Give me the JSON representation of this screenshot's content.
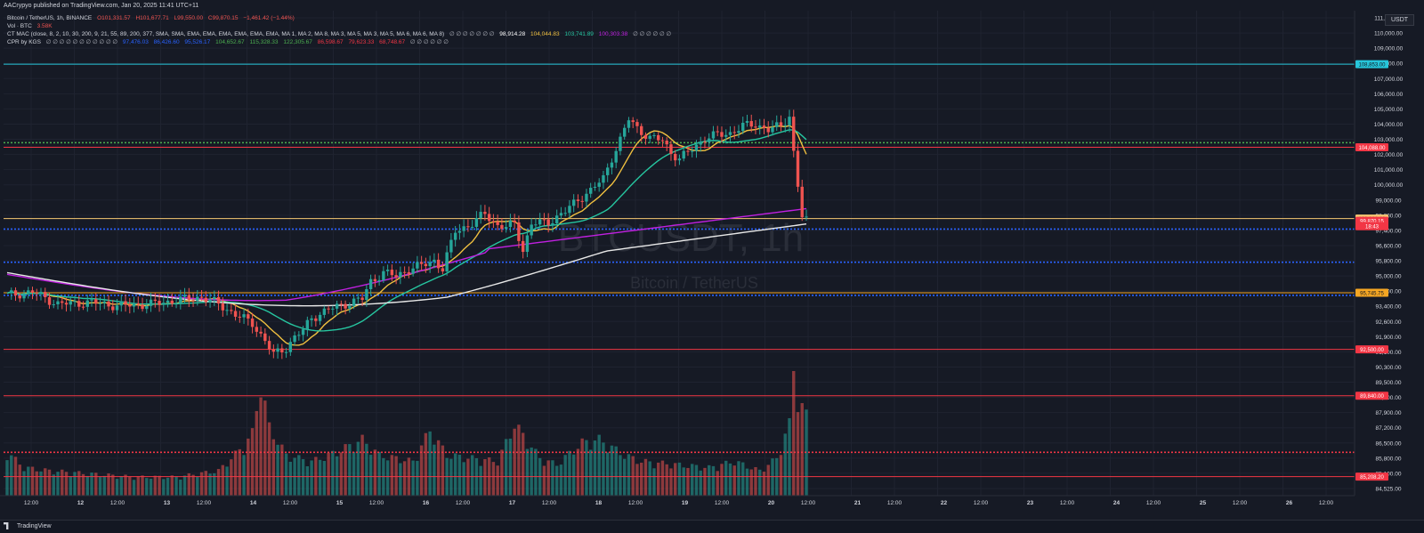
{
  "header": {
    "published_line": "AACrypyo published on TradingView.com, Jan 20, 2025 11:41 UTC+11",
    "symbol_line": {
      "title": "Bitcoin / TetherUS, 1h, BINANCE",
      "open": "O101,331.57",
      "high": "H101,677.71",
      "low": "L99,550.00",
      "close": "C99,870.15",
      "change": "−1,461.42 (−1.44%)"
    },
    "vol_line": {
      "label": "Vol · BTC",
      "value": "3.58K"
    },
    "ctmac_line": {
      "label": "CT MAC (close, 8, 2, 10, 30, 200, 9, 21, 55, 89, 200, 377, SMA, SMA, EMA, EMA, EMA, EMA, EMA, EMA, MA 1, MA 2, MA 8, MA 3, MA 5, MA 3, MA 5, MA 6, MA 6, MA 8)",
      "placeholders": "∅ ∅ ∅ ∅ ∅ ∅ ∅",
      "values": [
        "98,914.28",
        "104,044.83",
        "103,741.89",
        "100,303.38"
      ],
      "trailing": "∅ ∅ ∅ ∅ ∅ ∅"
    },
    "cpr_line": {
      "label": "CPR by KGS",
      "placeholders": "∅ ∅ ∅ ∅ ∅ ∅ ∅ ∅ ∅ ∅ ∅",
      "values": [
        "97,476.03",
        "86,426.60",
        "95,526.17",
        "104,652.67",
        "115,328.33",
        "122,305.67",
        "86,598.67",
        "79,623.33",
        "68,748.67"
      ],
      "trailing": "∅ ∅ ∅ ∅ ∅ ∅"
    }
  },
  "currency_label": "USDT",
  "watermark": {
    "symbol": "BTCUSDT, 1h",
    "description": "Bitcoin / TetherUS"
  },
  "price_axis_labels": [
    "111,000.00",
    "110,000.00",
    "109,000.00",
    "108,000.00",
    "107,000.00",
    "106,000.00",
    "105,000.00",
    "104,000.00",
    "103,000.00",
    "102,000.00",
    "101,000.00",
    "100,000.00",
    "99,000.00",
    "98,200.00",
    "97,400.00",
    "96,600.00",
    "95,800.00",
    "95,000.00",
    "94,200.00",
    "93,400.00",
    "92,600.00",
    "91,900.00",
    "91,100.00",
    "90,300.00",
    "89,500.00",
    "88,700.00",
    "87,900.00",
    "87,200.00",
    "86,500.00",
    "85,800.00",
    "85,100.00",
    "84,525.00"
  ],
  "time_axis_labels": [
    "12:00",
    "12",
    "12:00",
    "13",
    "12:00",
    "14",
    "12:00",
    "15",
    "12:00",
    "16",
    "12:00",
    "17",
    "12:00",
    "18",
    "12:00",
    "19",
    "12:00",
    "20",
    "12:00",
    "21",
    "12:00",
    "22",
    "12:00",
    "23",
    "12:00",
    "24",
    "12:00",
    "25",
    "12:00",
    "26",
    "12:00"
  ],
  "level_tags": [
    {
      "text": "108,853.00",
      "color": "#26c6da"
    },
    {
      "text": "104,088.00",
      "color": "#f23645"
    },
    {
      "text": "100,000.00",
      "color": "#f7c873"
    },
    {
      "text": "99,870.15",
      "color": "#f23645"
    },
    {
      "text": "18:43",
      "color": "#f23645"
    },
    {
      "text": "95,745.75",
      "color": "#f5a623"
    },
    {
      "text": "92,500.00",
      "color": "#f23645"
    },
    {
      "text": "89,840.00",
      "color": "#f23645"
    },
    {
      "text": "85,208.20",
      "color": "#f23645"
    }
  ],
  "footer": {
    "brand": "TradingView"
  },
  "colors": {
    "background": "#161a25",
    "up": "#26a69a",
    "down": "#ef5350",
    "ma_yellow": "#f0c040",
    "ma_teal": "#26c6a0",
    "ma_purple": "#c020e0",
    "ma_white": "#e8e8e8",
    "support_red": "#f23645",
    "support_blue": "#2962ff",
    "green_dotted": "#4caf50"
  },
  "chart_data": {
    "type": "candlestick",
    "symbol": "BTCUSDT",
    "interval": "1h",
    "exchange": "BINANCE",
    "y_range": [
      84525,
      111000
    ],
    "current_price": 99870.15,
    "horizontal_levels": [
      {
        "price": 108853,
        "color": "#26c6da",
        "style": "solid"
      },
      {
        "price": 104350,
        "color": "#4caf50",
        "style": "dotted"
      },
      {
        "price": 104088,
        "color": "#f23645",
        "style": "solid"
      },
      {
        "price": 100000,
        "color": "#f7c873",
        "style": "solid"
      },
      {
        "price": 99400,
        "color": "#2962ff",
        "style": "dotted"
      },
      {
        "price": 97500,
        "color": "#2962ff",
        "style": "dotted"
      },
      {
        "price": 95600,
        "color": "#2962ff",
        "style": "dotted"
      },
      {
        "price": 95745.75,
        "color": "#f5a623",
        "style": "solid"
      },
      {
        "price": 92500,
        "color": "#f23645",
        "style": "solid"
      },
      {
        "price": 89840,
        "color": "#f23645",
        "style": "solid"
      },
      {
        "price": 86600,
        "color": "#f23645",
        "style": "dotted"
      },
      {
        "price": 85208.2,
        "color": "#f23645",
        "style": "solid"
      }
    ],
    "price_path": [
      [
        0,
        95600
      ],
      [
        6,
        95800
      ],
      [
        12,
        95100
      ],
      [
        20,
        95200
      ],
      [
        26,
        95000
      ],
      [
        34,
        95100
      ],
      [
        40,
        95300
      ],
      [
        46,
        95500
      ],
      [
        50,
        95100
      ],
      [
        54,
        94500
      ],
      [
        58,
        94000
      ],
      [
        61,
        93000
      ],
      [
        63,
        92200
      ],
      [
        66,
        92600
      ],
      [
        68,
        93200
      ],
      [
        70,
        93600
      ],
      [
        72,
        94300
      ],
      [
        76,
        94800
      ],
      [
        80,
        95100
      ],
      [
        84,
        95400
      ],
      [
        86,
        96400
      ],
      [
        89,
        96900
      ],
      [
        92,
        96700
      ],
      [
        95,
        97100
      ],
      [
        98,
        97300
      ],
      [
        101,
        97600
      ],
      [
        103,
        97100
      ],
      [
        106,
        99300
      ],
      [
        110,
        99700
      ],
      [
        113,
        100300
      ],
      [
        116,
        99600
      ],
      [
        118,
        99500
      ],
      [
        120,
        99700
      ],
      [
        122,
        98200
      ],
      [
        124,
        99700
      ],
      [
        128,
        99800
      ],
      [
        132,
        100400
      ],
      [
        135,
        101100
      ],
      [
        138,
        101600
      ],
      [
        141,
        102300
      ],
      [
        143,
        103500
      ],
      [
        145,
        104500
      ],
      [
        147,
        105700
      ],
      [
        149,
        105200
      ],
      [
        152,
        104600
      ],
      [
        155,
        104500
      ],
      [
        157,
        103800
      ],
      [
        159,
        103400
      ],
      [
        162,
        104000
      ],
      [
        165,
        104600
      ],
      [
        168,
        104800
      ],
      [
        171,
        104900
      ],
      [
        174,
        105300
      ],
      [
        177,
        105400
      ],
      [
        180,
        105100
      ],
      [
        183,
        105300
      ],
      [
        185,
        105900
      ],
      [
        186,
        103800
      ],
      [
        187,
        101900
      ],
      [
        188,
        100100
      ],
      [
        189,
        99870
      ]
    ],
    "volume_path": [
      [
        0,
        140
      ],
      [
        4,
        90
      ],
      [
        10,
        80
      ],
      [
        20,
        70
      ],
      [
        30,
        60
      ],
      [
        40,
        60
      ],
      [
        50,
        80
      ],
      [
        56,
        160
      ],
      [
        58,
        200
      ],
      [
        60,
        360
      ],
      [
        62,
        220
      ],
      [
        66,
        130
      ],
      [
        72,
        110
      ],
      [
        78,
        140
      ],
      [
        84,
        180
      ],
      [
        88,
        130
      ],
      [
        96,
        110
      ],
      [
        100,
        210
      ],
      [
        104,
        130
      ],
      [
        110,
        120
      ],
      [
        116,
        110
      ],
      [
        120,
        230
      ],
      [
        126,
        120
      ],
      [
        130,
        100
      ],
      [
        136,
        170
      ],
      [
        140,
        180
      ],
      [
        146,
        130
      ],
      [
        150,
        110
      ],
      [
        158,
        100
      ],
      [
        166,
        90
      ],
      [
        172,
        110
      ],
      [
        178,
        80
      ],
      [
        182,
        120
      ],
      [
        185,
        230
      ],
      [
        186,
        420
      ],
      [
        187,
        300
      ],
      [
        189,
        260
      ]
    ]
  }
}
